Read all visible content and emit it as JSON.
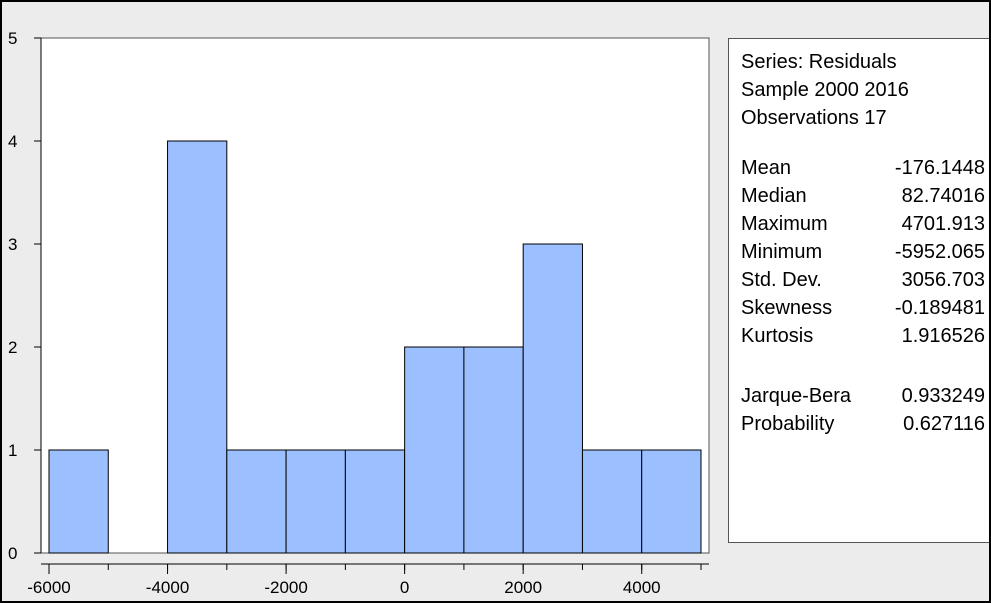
{
  "chart_data": {
    "type": "bar",
    "bin_edges": [
      -6000,
      -5000,
      -4000,
      -3000,
      -2000,
      -1000,
      0,
      1000,
      2000,
      3000,
      4000,
      5000
    ],
    "values": [
      1,
      0,
      4,
      1,
      1,
      1,
      2,
      2,
      3,
      1,
      1
    ],
    "xlim": [
      -6000,
      5000
    ],
    "ylim": [
      0,
      5
    ],
    "x_ticks": [
      -6000,
      -4000,
      -2000,
      0,
      2000,
      4000
    ],
    "x_tick_labels": [
      "-6000",
      "-4000",
      "-2000",
      "0",
      "2000",
      "4000"
    ],
    "y_ticks": [
      0,
      1,
      2,
      3,
      4,
      5
    ],
    "y_tick_labels": [
      "0",
      "1",
      "2",
      "3",
      "4",
      "5"
    ],
    "grid": false,
    "legend": "none",
    "bar_color": "#9bbfff",
    "bar_edge_color": "#000000",
    "plot_background": "#ffffff"
  },
  "stats_panel": {
    "header": [
      "Series: Residuals",
      "Sample 2000 2016",
      "Observations 17"
    ],
    "rows": [
      {
        "label": "Mean",
        "value": "-176.1448"
      },
      {
        "label": "Median",
        "value": "82.74016"
      },
      {
        "label": "Maximum",
        "value": "4701.913"
      },
      {
        "label": "Minimum",
        "value": "-5952.065"
      },
      {
        "label": "Std. Dev.",
        "value": "3056.703"
      },
      {
        "label": "Skewness",
        "value": "-0.189481"
      },
      {
        "label": "Kurtosis",
        "value": "1.916526"
      }
    ],
    "tests": [
      {
        "label": "Jarque-Bera",
        "value": "0.933249"
      },
      {
        "label": "Probability",
        "value": "0.627116"
      }
    ]
  }
}
